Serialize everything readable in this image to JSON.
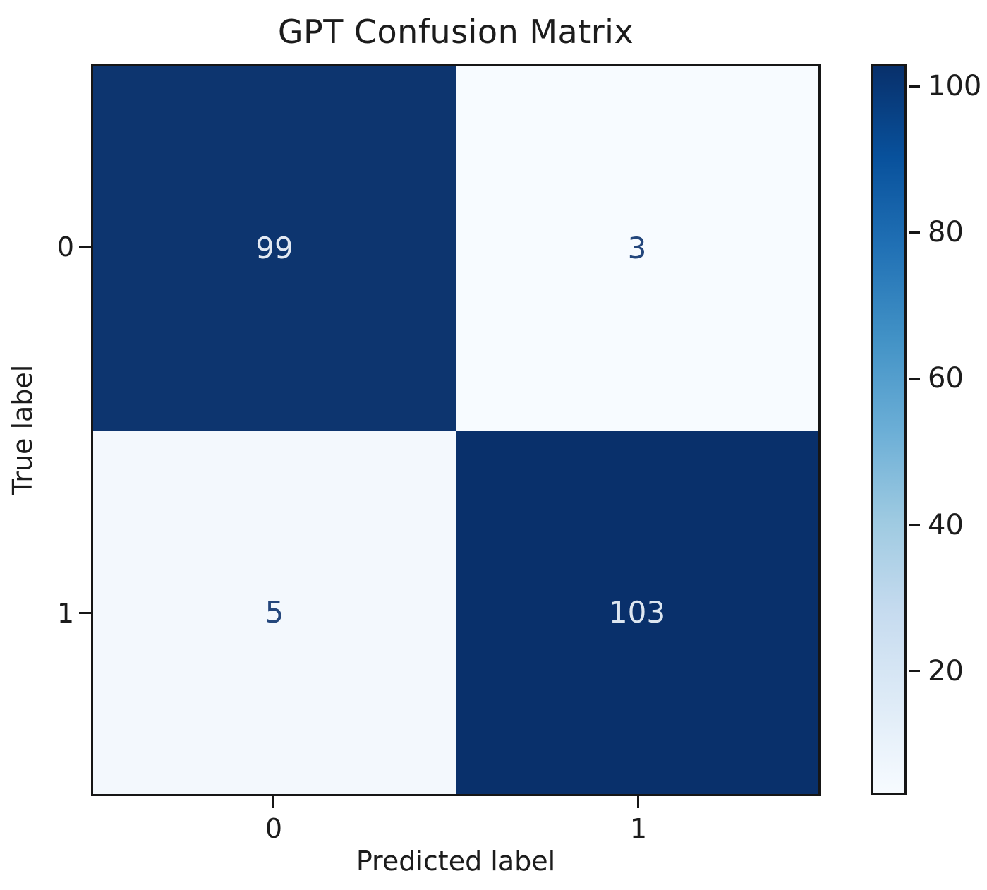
{
  "chart_data": {
    "type": "heatmap",
    "title": "GPT Confusion Matrix",
    "xlabel": "Predicted label",
    "ylabel": "True label",
    "x_tick_labels": [
      "0",
      "1"
    ],
    "y_tick_labels": [
      "0",
      "1"
    ],
    "matrix": [
      [
        99,
        3
      ],
      [
        5,
        103
      ]
    ],
    "cells": [
      {
        "row": "0",
        "col": "0",
        "value": "99",
        "bg": "#0d356f",
        "fg": "#e2e9f2"
      },
      {
        "row": "0",
        "col": "1",
        "value": "3",
        "bg": "#f7fbff",
        "fg": "#24477c"
      },
      {
        "row": "1",
        "col": "0",
        "value": "5",
        "bg": "#f3f8fd",
        "fg": "#24477c"
      },
      {
        "row": "1",
        "col": "1",
        "value": "103",
        "bg": "#09306b",
        "fg": "#dde6f0"
      }
    ],
    "colormap": "Blues",
    "colorbar_ticks": [
      "100",
      "80",
      "60",
      "40",
      "20"
    ],
    "vmin": 3,
    "vmax": 103,
    "legend_position": "right",
    "grid": false
  },
  "colors": {
    "axis": "#161616",
    "title_text": "#1c1c1c",
    "colorbar_gradient_low_to_high": [
      "#f7fbff",
      "#deebf7",
      "#c6dbef",
      "#9ecae1",
      "#6baed6",
      "#4292c6",
      "#2171b5",
      "#08519c",
      "#08306b"
    ]
  }
}
